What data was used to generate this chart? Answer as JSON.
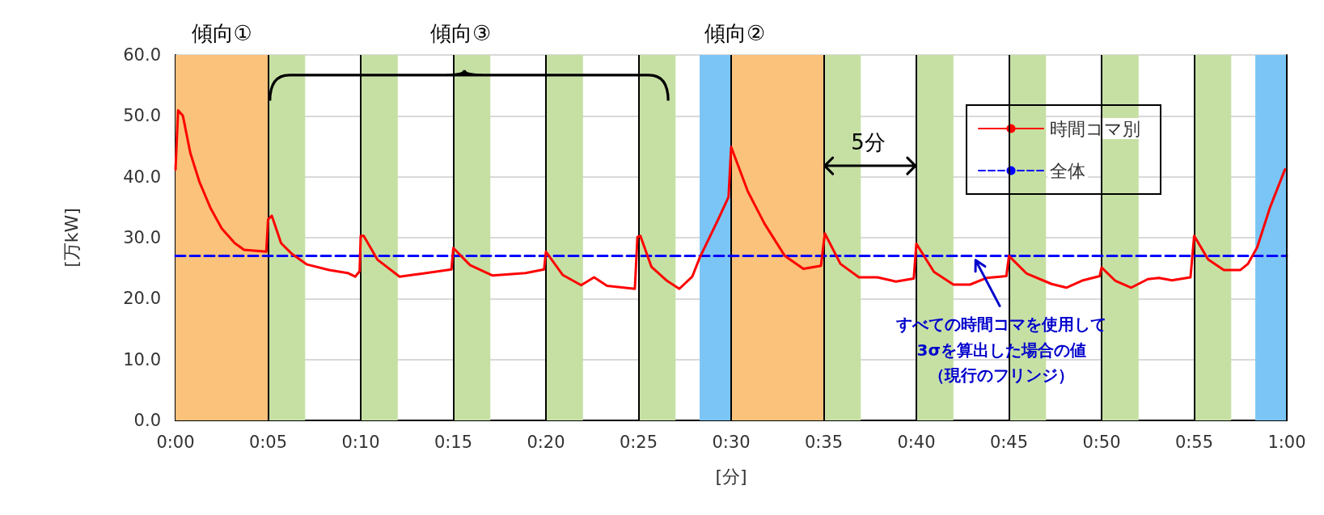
{
  "chart_data": {
    "type": "line",
    "xlabel": "[分]",
    "ylabel": "[万kW]",
    "series": [
      {
        "name": "時間コマ別",
        "color": "#ff0000",
        "line_style": "solid",
        "x": [
          0,
          0.14,
          0.4,
          0.8,
          1.3,
          1.9,
          2.5,
          3.2,
          3.7,
          4.9,
          5.0,
          5.2,
          5.7,
          6.3,
          7.1,
          8.3,
          9.3,
          9.7,
          9.94,
          10.0,
          10.16,
          10.9,
          12.1,
          13.3,
          14.9,
          15.0,
          15.9,
          17.1,
          18.9,
          19.9,
          20.0,
          20.9,
          21.9,
          22.6,
          23.3,
          24.8,
          24.94,
          25.1,
          25.7,
          26.5,
          27.2,
          27.9,
          28.3,
          29.3,
          29.86,
          30.0,
          30.9,
          31.8,
          32.9,
          33.9,
          34.85,
          35.06,
          35.9,
          36.9,
          37.9,
          38.9,
          39.86,
          40.0,
          40.95,
          42.0,
          42.9,
          43.8,
          44.86,
          45.0,
          45.96,
          47.3,
          48.1,
          49.0,
          49.9,
          50.0,
          50.75,
          51.6,
          52.5,
          53.1,
          53.8,
          54.8,
          55.0,
          55.76,
          56.6,
          57.5,
          57.9,
          58.4,
          59.1,
          59.9
        ],
        "values": [
          41.2,
          50.9,
          50.0,
          43.9,
          39.1,
          34.8,
          31.5,
          29.1,
          28.0,
          27.7,
          33.0,
          33.6,
          29.1,
          27.3,
          25.6,
          24.7,
          24.2,
          23.6,
          24.5,
          30.3,
          30.3,
          26.4,
          23.6,
          24.1,
          24.8,
          28.3,
          25.5,
          23.8,
          24.2,
          24.8,
          27.7,
          23.9,
          22.2,
          23.5,
          22.1,
          21.6,
          30.1,
          30.3,
          25.2,
          23.0,
          21.6,
          23.6,
          26.7,
          33.0,
          36.7,
          44.9,
          37.6,
          32.3,
          27.0,
          24.9,
          25.4,
          30.7,
          25.7,
          23.5,
          23.5,
          22.8,
          23.3,
          29.0,
          24.4,
          22.3,
          22.3,
          23.4,
          23.7,
          27.0,
          24.1,
          22.4,
          21.8,
          23.0,
          23.7,
          25.1,
          22.9,
          21.8,
          23.2,
          23.4,
          23.0,
          23.5,
          30.3,
          26.4,
          24.7,
          24.7,
          25.7,
          28.4,
          35.0,
          41.2
        ]
      },
      {
        "name": "全体",
        "color": "#0000ff",
        "line_style": "dashed",
        "x": [
          0,
          60
        ],
        "values": [
          27.0,
          27.0
        ]
      }
    ],
    "xlim": [
      0,
      60
    ],
    "xticks": [
      {
        "value": 0,
        "label": "0:00"
      },
      {
        "value": 5,
        "label": "0:05"
      },
      {
        "value": 10,
        "label": "0:10"
      },
      {
        "value": 15,
        "label": "0:15"
      },
      {
        "value": 20,
        "label": "0:20"
      },
      {
        "value": 25,
        "label": "0:25"
      },
      {
        "value": 30,
        "label": "0:30"
      },
      {
        "value": 35,
        "label": "0:35"
      },
      {
        "value": 40,
        "label": "0:40"
      },
      {
        "value": 45,
        "label": "0:45"
      },
      {
        "value": 50,
        "label": "0:50"
      },
      {
        "value": 55,
        "label": "0:55"
      },
      {
        "value": 60,
        "label": "1:00"
      }
    ],
    "ylim": [
      0,
      60
    ],
    "yticks": [
      {
        "value": 0,
        "label": "0.0"
      },
      {
        "value": 10,
        "label": "10.0"
      },
      {
        "value": 20,
        "label": "20.0"
      },
      {
        "value": 30,
        "label": "30.0"
      },
      {
        "value": 40,
        "label": "40.0"
      },
      {
        "value": 50,
        "label": "50.0"
      },
      {
        "value": 60,
        "label": "60.0"
      }
    ],
    "grid": "y",
    "legend": "top right",
    "marker": "none",
    "bands": [
      {
        "axis": "x",
        "from": 0,
        "to": 5,
        "color": "#fac27a"
      },
      {
        "axis": "x",
        "from": 5,
        "to": 7,
        "color": "#c6e0a4"
      },
      {
        "axis": "x",
        "from": 10,
        "to": 12,
        "color": "#c6e0a4"
      },
      {
        "axis": "x",
        "from": 15,
        "to": 17,
        "color": "#c6e0a4"
      },
      {
        "axis": "x",
        "from": 20,
        "to": 22,
        "color": "#c6e0a4"
      },
      {
        "axis": "x",
        "from": 25,
        "to": 27,
        "color": "#c6e0a4"
      },
      {
        "axis": "x",
        "from": 28.3,
        "to": 30,
        "color": "#7ac5f5"
      },
      {
        "axis": "x",
        "from": 30,
        "to": 35,
        "color": "#fac27a"
      },
      {
        "axis": "x",
        "from": 35,
        "to": 37,
        "color": "#c6e0a4"
      },
      {
        "axis": "x",
        "from": 40,
        "to": 42,
        "color": "#c6e0a4"
      },
      {
        "axis": "x",
        "from": 45,
        "to": 47,
        "color": "#c6e0a4"
      },
      {
        "axis": "x",
        "from": 50,
        "to": 52,
        "color": "#c6e0a4"
      },
      {
        "axis": "x",
        "from": 55,
        "to": 57,
        "color": "#c6e0a4"
      },
      {
        "axis": "x",
        "from": 58.3,
        "to": 60,
        "color": "#7ac5f5"
      }
    ],
    "ref_lines": [
      {
        "axis": "x",
        "value": 5,
        "color": "#000000"
      },
      {
        "axis": "x",
        "value": 10,
        "color": "#000000"
      },
      {
        "axis": "x",
        "value": 15,
        "color": "#000000"
      },
      {
        "axis": "x",
        "value": 20,
        "color": "#000000"
      },
      {
        "axis": "x",
        "value": 25,
        "color": "#000000"
      },
      {
        "axis": "x",
        "value": 30,
        "color": "#000000"
      },
      {
        "axis": "x",
        "value": 35,
        "color": "#000000"
      },
      {
        "axis": "x",
        "value": 40,
        "color": "#000000"
      },
      {
        "axis": "x",
        "value": 45,
        "color": "#000000"
      },
      {
        "axis": "x",
        "value": 50,
        "color": "#000000"
      },
      {
        "axis": "x",
        "value": 55,
        "color": "#000000"
      }
    ],
    "annotations": [
      "傾向①",
      "傾向③",
      "傾向②",
      "5分",
      "すべての時間コマを使用して",
      "3σを算出した場合の値",
      "（現行のフリンジ）"
    ]
  }
}
